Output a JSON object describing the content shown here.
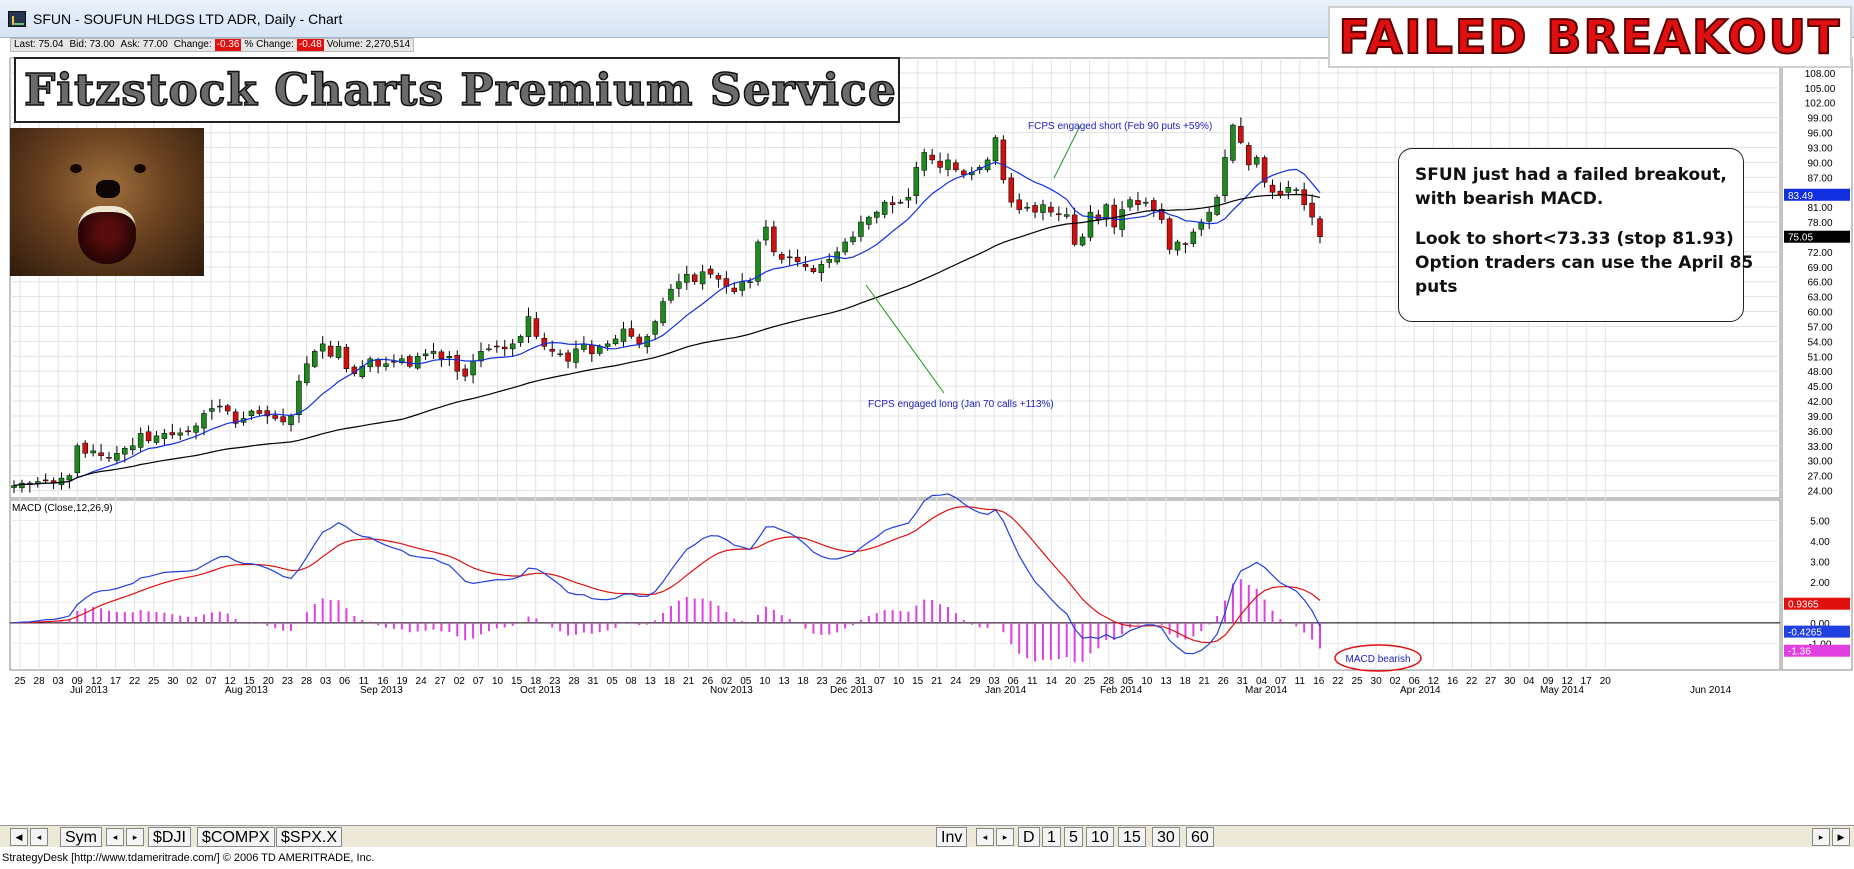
{
  "window": {
    "title": "SFUN - SOUFUN HLDGS LTD ADR, Daily - Chart"
  },
  "banner": "FAILED BREAKOUT",
  "quote": {
    "last": "Last: 75.04",
    "bid": "Bid: 73.00",
    "ask": "Ask: 77.00",
    "change_label": "Change:",
    "change": "-0.36",
    "pct_label": "% Change:",
    "pct": "-0.48",
    "volume": "Volume: 2,270,514"
  },
  "logo": "Fitzstock Charts Premium Service",
  "callout": {
    "line1": "SFUN just had a failed breakout,",
    "line2": "with bearish MACD.",
    "line3": "Look to short<73.33 (stop 81.93)",
    "line4": "Option traders can use the April 85",
    "line5": "puts"
  },
  "annotations": {
    "short": "FCPS engaged short (Feb 90 puts +59%)",
    "long": "FCPS engaged long (Jan 70 calls +113%)",
    "macd": "MACD bearish"
  },
  "macd_label": "MACD (Close,12,26,9)",
  "colors": {
    "up": "#1e8a1e",
    "down": "#d01010",
    "ma_fast": "#1030e0",
    "ma_slow": "#000000",
    "macd_line": "#2040e0",
    "signal_line": "#e01010",
    "hist": "#e040e0"
  },
  "chart_data": [
    {
      "type": "candlestick",
      "title": "SFUN - SOUFUN HLDGS LTD ADR, Daily",
      "ylim": [
        22.5,
        111
      ],
      "y_ticks": [
        "108.00",
        "105.00",
        "102.00",
        "99.00",
        "96.00",
        "93.00",
        "90.00",
        "87.00",
        "84.00",
        "81.00",
        "78.00",
        "75.00",
        "72.00",
        "69.00",
        "66.00",
        "63.00",
        "60.00",
        "57.00",
        "54.00",
        "51.00",
        "48.00",
        "45.00",
        "42.00",
        "39.00",
        "36.00",
        "33.00",
        "30.00",
        "27.00",
        "24.00"
      ],
      "last_price": "75.05",
      "ma_fast_label": "83.49",
      "x_ticks": [
        "25",
        "28",
        "03",
        "09",
        "12",
        "17",
        "22",
        "25",
        "30",
        "02",
        "07",
        "12",
        "15",
        "20",
        "23",
        "28",
        "03",
        "06",
        "11",
        "16",
        "19",
        "24",
        "27",
        "02",
        "07",
        "10",
        "15",
        "18",
        "23",
        "28",
        "31",
        "05",
        "08",
        "13",
        "18",
        "21",
        "26",
        "02",
        "05",
        "10",
        "13",
        "18",
        "23",
        "26",
        "31",
        "07",
        "10",
        "15",
        "21",
        "24",
        "29",
        "03",
        "06",
        "11",
        "14",
        "20",
        "25",
        "28",
        "05",
        "10",
        "13",
        "18",
        "21",
        "26",
        "31",
        "04",
        "07",
        "11",
        "16",
        "22",
        "25",
        "30",
        "02",
        "06",
        "12",
        "16",
        "22",
        "27",
        "30",
        "04",
        "09",
        "12",
        "17",
        "20"
      ],
      "months": [
        "Jul 2013",
        "Aug 2013",
        "Sep 2013",
        "Oct 2013",
        "Nov 2013",
        "Dec 2013",
        "Jan 2014",
        "Feb 2014",
        "Mar 2014",
        "Apr 2014",
        "May 2014",
        "Jun 2014"
      ],
      "close_path": [
        25.0,
        25.5,
        25.2,
        25.8,
        26.0,
        25.6,
        26.5,
        27.0,
        33.0,
        31.5,
        32.0,
        31.0,
        30.5,
        31.5,
        32.5,
        33.0,
        35.5,
        34.0,
        35.0,
        35.5,
        35.2,
        35.6,
        36.0,
        37.0,
        39.5,
        40.5,
        41.0,
        40.0,
        37.5,
        38.5,
        40.0,
        39.5,
        39.0,
        38.5,
        37.8,
        39.0,
        46.0,
        49.5,
        52.0,
        53.5,
        51.0,
        53.0,
        48.5,
        47.5,
        49.0,
        50.5,
        49.0,
        49.5,
        50.0,
        50.5,
        49.0,
        51.0,
        51.5,
        52.0,
        50.5,
        51.0,
        48.0,
        47.0,
        50.0,
        52.0,
        52.5,
        53.0,
        52.5,
        53.5,
        55.0,
        59.0,
        55.0,
        53.0,
        52.0,
        51.5,
        50.0,
        52.5,
        53.5,
        51.5,
        53.0,
        53.5,
        54.5,
        56.5,
        55.0,
        53.5,
        55.0,
        58.0,
        62.0,
        64.5,
        66.0,
        67.5,
        66.0,
        68.0,
        67.5,
        66.5,
        65.0,
        64.0,
        66.0,
        66.0,
        74.0,
        77.0,
        72.0,
        70.5,
        71.0,
        70.0,
        69.0,
        68.0,
        69.5,
        70.5,
        72.0,
        74.0,
        75.0,
        78.0,
        79.0,
        80.0,
        82.0,
        81.5,
        82.0,
        83.0,
        89.0,
        92.0,
        90.5,
        89.0,
        90.5,
        88.5,
        87.5,
        88.0,
        89.0,
        90.5,
        95.0,
        86.5,
        82.0,
        80.5,
        81.0,
        80.0,
        81.5,
        80.0,
        79.5,
        79.5,
        73.5,
        75.0,
        80.0,
        78.5,
        81.5,
        77.0,
        80.5,
        82.5,
        81.5,
        82.0,
        80.5,
        78.5,
        72.5,
        74.0,
        73.5,
        76.0,
        78.0,
        80.0,
        83.0,
        91.0,
        97.5,
        94.0,
        89.5,
        91.0,
        86.0,
        84.0,
        83.5,
        85.0,
        84.5,
        81.5,
        79.0,
        75.05
      ]
    },
    {
      "type": "line",
      "title": "MACD (Close,12,26,9)",
      "ylim": [
        -2.3,
        6.0
      ],
      "y_ticks": [
        "5.00",
        "4.00",
        "3.00",
        "2.00",
        "1.00",
        "0.00",
        "-1.00"
      ],
      "last_values": {
        "signal": "0.9365",
        "macd": "-0.4265",
        "hist": "-1.36"
      }
    }
  ],
  "footer": {
    "sym": "Sym",
    "t1": "$DJI",
    "t2": "$COMPX",
    "t3": "$SPX.X",
    "inv": "Inv",
    "d": "D",
    "i1": "1",
    "i5": "5",
    "i10": "10",
    "i15": "15",
    "i30": "30",
    "i60": "60",
    "copyright": "StrategyDesk [http://www.tdameritrade.com/] © 2006 TD AMERITRADE, Inc."
  }
}
